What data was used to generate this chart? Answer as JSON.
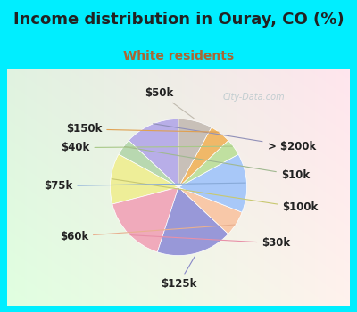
{
  "title": "Income distribution in Ouray, CO (%)",
  "subtitle": "White residents",
  "title_color": "#222222",
  "subtitle_color": "#aa6633",
  "bg_cyan": "#00eeff",
  "bg_panel_tl": "#e8f5ee",
  "bg_panel_br": "#d0eee0",
  "watermark": "City-Data.com",
  "labels": [
    "> $200k",
    "$10k",
    "$100k",
    "$30k",
    "$125k",
    "$60k",
    "$75k",
    "$40k",
    "$150k",
    "$50k"
  ],
  "values": [
    13,
    4,
    12,
    16,
    18,
    6,
    14,
    4,
    5,
    8
  ],
  "colors": [
    "#b8aee8",
    "#b8d8b0",
    "#eeee98",
    "#f0aabb",
    "#9898d8",
    "#f8c8a8",
    "#a8c8f8",
    "#c0e0a0",
    "#f0b868",
    "#c8c0b8"
  ],
  "startangle": 90,
  "label_fs": 8.5,
  "title_fs": 13,
  "sub_fs": 10,
  "label_color": "#222222"
}
